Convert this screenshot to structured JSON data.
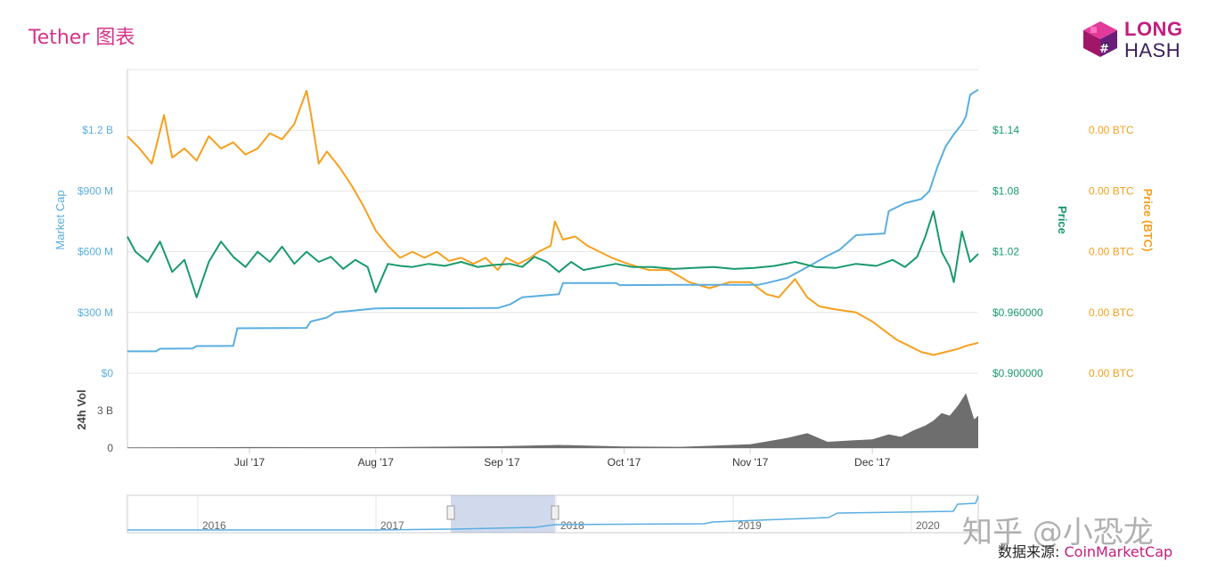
{
  "page": {
    "title": "Tether 图表",
    "watermark": "知乎 @小恐龙",
    "source_label": "数据来源: ",
    "source_name": "CoinMarketCap",
    "logo_line1": "LONG",
    "logo_line2": "HASH"
  },
  "colors": {
    "market_cap": "#5aaee0",
    "price_usd": "#1a9a6b",
    "price_btc": "#f5a01f",
    "volume": "#6e6e6e",
    "brand": "#c21e7e"
  },
  "chart_data": {
    "type": "line",
    "x_start": "2017-06-01",
    "x_end": "2017-12-27",
    "x_ticks": [
      {
        "date": "2017-07-01",
        "label": "Jul '17"
      },
      {
        "date": "2017-08-01",
        "label": "Aug '17"
      },
      {
        "date": "2017-09-01",
        "label": "Sep '17"
      },
      {
        "date": "2017-10-01",
        "label": "Oct '17"
      },
      {
        "date": "2017-11-01",
        "label": "Nov '17"
      },
      {
        "date": "2017-12-01",
        "label": "Dec '17"
      }
    ],
    "axes": {
      "market_cap": {
        "label": "Market Cap",
        "ylim": [
          0,
          1500000000
        ],
        "ticks": [
          {
            "v": 0,
            "label": "$0"
          },
          {
            "v": 300000000,
            "label": "$300 M"
          },
          {
            "v": 600000000,
            "label": "$600 M"
          },
          {
            "v": 900000000,
            "label": "$900 M"
          },
          {
            "v": 1200000000,
            "label": "$1.2 B"
          }
        ]
      },
      "price": {
        "label": "Price",
        "ylim": [
          0.9,
          1.2
        ],
        "ticks": [
          {
            "v": 0.9,
            "label": "$0.900000"
          },
          {
            "v": 0.96,
            "label": "$0.960000"
          },
          {
            "v": 1.02,
            "label": "$1.02"
          },
          {
            "v": 1.08,
            "label": "$1.08"
          },
          {
            "v": 1.14,
            "label": "$1.14"
          }
        ]
      },
      "price_btc": {
        "label": "Price (BTC)",
        "ticks": [
          "0.00 BTC",
          "0.00 BTC",
          "0.00 BTC",
          "0.00 BTC",
          "0.00 BTC"
        ]
      },
      "volume": {
        "label": "24h Vol",
        "ylim": [
          0,
          6000000000
        ],
        "ticks": [
          {
            "v": 0,
            "label": "0"
          },
          {
            "v": 3000000000,
            "label": "3 B"
          }
        ]
      }
    },
    "series": [
      {
        "name": "Market Cap",
        "x": [
          "2017-06-01",
          "2017-06-08",
          "2017-06-09",
          "2017-06-17",
          "2017-06-18",
          "2017-06-27",
          "2017-06-28",
          "2017-07-15",
          "2017-07-16",
          "2017-07-20",
          "2017-07-22",
          "2017-07-27",
          "2017-08-01",
          "2017-08-05",
          "2017-08-20",
          "2017-08-31",
          "2017-09-03",
          "2017-09-06",
          "2017-09-15",
          "2017-09-16",
          "2017-09-29",
          "2017-09-30",
          "2017-10-15",
          "2017-11-03",
          "2017-11-05",
          "2017-11-10",
          "2017-11-16",
          "2017-11-20",
          "2017-11-23",
          "2017-11-27",
          "2017-12-04",
          "2017-12-05",
          "2017-12-09",
          "2017-12-13",
          "2017-12-15",
          "2017-12-17",
          "2017-12-19",
          "2017-12-21",
          "2017-12-23",
          "2017-12-24",
          "2017-12-25",
          "2017-12-27"
        ],
        "values": [
          108000000,
          108000000,
          121000000,
          122000000,
          134000000,
          135000000,
          222000000,
          224000000,
          255000000,
          275000000,
          300000000,
          310000000,
          320000000,
          321000000,
          321000000,
          322000000,
          340000000,
          375000000,
          390000000,
          445000000,
          445000000,
          435000000,
          437000000,
          437000000,
          445000000,
          470000000,
          535000000,
          580000000,
          610000000,
          682000000,
          690000000,
          800000000,
          840000000,
          860000000,
          900000000,
          1020000000,
          1120000000,
          1180000000,
          1230000000,
          1270000000,
          1375000000,
          1400000000
        ]
      },
      {
        "name": "Price",
        "x": [
          "2017-06-01",
          "2017-06-03",
          "2017-06-06",
          "2017-06-09",
          "2017-06-12",
          "2017-06-15",
          "2017-06-18",
          "2017-06-21",
          "2017-06-24",
          "2017-06-27",
          "2017-06-30",
          "2017-07-03",
          "2017-07-06",
          "2017-07-09",
          "2017-07-12",
          "2017-07-15",
          "2017-07-18",
          "2017-07-21",
          "2017-07-24",
          "2017-07-27",
          "2017-07-30",
          "2017-08-01",
          "2017-08-04",
          "2017-08-07",
          "2017-08-10",
          "2017-08-14",
          "2017-08-18",
          "2017-08-22",
          "2017-08-26",
          "2017-08-30",
          "2017-09-03",
          "2017-09-06",
          "2017-09-09",
          "2017-09-12",
          "2017-09-15",
          "2017-09-18",
          "2017-09-21",
          "2017-09-25",
          "2017-09-29",
          "2017-10-03",
          "2017-10-08",
          "2017-10-13",
          "2017-10-18",
          "2017-10-23",
          "2017-10-28",
          "2017-11-02",
          "2017-11-07",
          "2017-11-12",
          "2017-11-17",
          "2017-11-22",
          "2017-11-27",
          "2017-12-02",
          "2017-12-06",
          "2017-12-09",
          "2017-12-12",
          "2017-12-14",
          "2017-12-16",
          "2017-12-18",
          "2017-12-20",
          "2017-12-21",
          "2017-12-23",
          "2017-12-25",
          "2017-12-27"
        ],
        "values": [
          1.035,
          1.02,
          1.01,
          1.03,
          1.0,
          1.012,
          0.975,
          1.01,
          1.03,
          1.015,
          1.005,
          1.02,
          1.01,
          1.025,
          1.008,
          1.02,
          1.01,
          1.015,
          1.003,
          1.012,
          1.005,
          0.98,
          1.008,
          1.006,
          1.005,
          1.008,
          1.006,
          1.01,
          1.005,
          1.007,
          1.008,
          1.005,
          1.015,
          1.01,
          1.0,
          1.01,
          1.002,
          1.005,
          1.008,
          1.005,
          1.005,
          1.003,
          1.004,
          1.005,
          1.003,
          1.004,
          1.006,
          1.01,
          1.005,
          1.004,
          1.008,
          1.006,
          1.012,
          1.005,
          1.015,
          1.035,
          1.06,
          1.02,
          1.005,
          0.99,
          1.04,
          1.01,
          1.018
        ]
      },
      {
        "name": "Price (BTC)",
        "x": [
          "2017-06-01",
          "2017-06-04",
          "2017-06-07",
          "2017-06-10",
          "2017-06-12",
          "2017-06-15",
          "2017-06-18",
          "2017-06-21",
          "2017-06-24",
          "2017-06-27",
          "2017-06-30",
          "2017-07-03",
          "2017-07-06",
          "2017-07-09",
          "2017-07-12",
          "2017-07-15",
          "2017-07-16",
          "2017-07-18",
          "2017-07-20",
          "2017-07-23",
          "2017-07-26",
          "2017-07-29",
          "2017-08-01",
          "2017-08-04",
          "2017-08-07",
          "2017-08-10",
          "2017-08-13",
          "2017-08-16",
          "2017-08-19",
          "2017-08-22",
          "2017-08-25",
          "2017-08-28",
          "2017-08-31",
          "2017-09-02",
          "2017-09-05",
          "2017-09-08",
          "2017-09-10",
          "2017-09-13",
          "2017-09-14",
          "2017-09-16",
          "2017-09-19",
          "2017-09-22",
          "2017-09-25",
          "2017-09-28",
          "2017-10-02",
          "2017-10-07",
          "2017-10-12",
          "2017-10-17",
          "2017-10-22",
          "2017-10-27",
          "2017-11-01",
          "2017-11-05",
          "2017-11-08",
          "2017-11-10",
          "2017-11-12",
          "2017-11-15",
          "2017-11-18",
          "2017-11-22",
          "2017-11-27",
          "2017-12-01",
          "2017-12-04",
          "2017-12-07",
          "2017-12-10",
          "2017-12-13",
          "2017-12-16",
          "2017-12-19",
          "2017-12-22",
          "2017-12-24",
          "2017-12-27"
        ],
        "values": [
          0.78,
          0.74,
          0.69,
          0.85,
          0.71,
          0.74,
          0.7,
          0.78,
          0.74,
          0.76,
          0.72,
          0.74,
          0.79,
          0.77,
          0.82,
          0.93,
          0.86,
          0.69,
          0.73,
          0.68,
          0.62,
          0.55,
          0.47,
          0.42,
          0.38,
          0.4,
          0.38,
          0.4,
          0.37,
          0.38,
          0.36,
          0.38,
          0.34,
          0.38,
          0.36,
          0.38,
          0.4,
          0.42,
          0.5,
          0.44,
          0.45,
          0.42,
          0.4,
          0.38,
          0.36,
          0.34,
          0.34,
          0.3,
          0.28,
          0.3,
          0.3,
          0.26,
          0.25,
          0.28,
          0.31,
          0.25,
          0.22,
          0.21,
          0.2,
          0.17,
          0.14,
          0.11,
          0.09,
          0.07,
          0.06,
          0.07,
          0.08,
          0.09,
          0.1
        ]
      },
      {
        "name": "24h Vol",
        "x": [
          "2017-06-01",
          "2017-07-01",
          "2017-08-01",
          "2017-09-01",
          "2017-09-15",
          "2017-10-01",
          "2017-10-15",
          "2017-11-01",
          "2017-11-10",
          "2017-11-15",
          "2017-11-20",
          "2017-11-25",
          "2017-12-01",
          "2017-12-05",
          "2017-12-08",
          "2017-12-11",
          "2017-12-14",
          "2017-12-16",
          "2017-12-18",
          "2017-12-20",
          "2017-12-22",
          "2017-12-24",
          "2017-12-26",
          "2017-12-27"
        ],
        "values": [
          50000000,
          80000000,
          70000000,
          150000000,
          250000000,
          120000000,
          100000000,
          300000000,
          800000000,
          1200000000,
          500000000,
          600000000,
          700000000,
          1100000000,
          900000000,
          1400000000,
          1800000000,
          2200000000,
          2800000000,
          2600000000,
          3400000000,
          4400000000,
          2300000000,
          2600000000
        ]
      }
    ],
    "navigator": {
      "labels": [
        "2016",
        "2017",
        "2018",
        "2019",
        "2020"
      ]
    }
  }
}
